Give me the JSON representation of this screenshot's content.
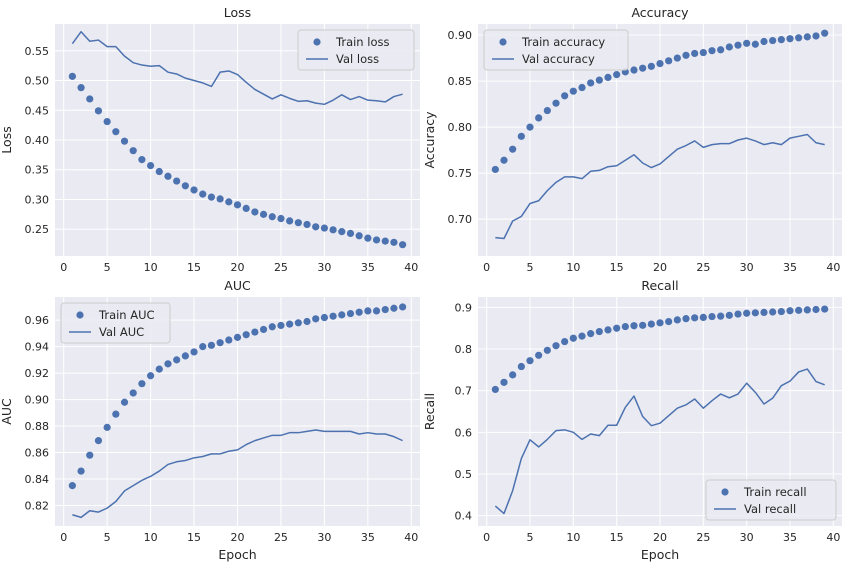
{
  "colors": {
    "accent": "#4c72b0",
    "axes_bg": "#eaeaf2",
    "grid": "#ffffff",
    "text": "#262626"
  },
  "chart_data": [
    {
      "type": "line",
      "title": "Loss",
      "xlabel": "",
      "ylabel": "Loss",
      "xlim": [
        -1,
        41
      ],
      "ylim": [
        0.205,
        0.595
      ],
      "xticks": [
        0,
        5,
        10,
        15,
        20,
        25,
        30,
        35,
        40
      ],
      "yticks": [
        0.25,
        0.3,
        0.35,
        0.4,
        0.45,
        0.5,
        0.55
      ],
      "legend_position": "top-right",
      "grid": true,
      "x": [
        1,
        2,
        3,
        4,
        5,
        6,
        7,
        8,
        9,
        10,
        11,
        12,
        13,
        14,
        15,
        16,
        17,
        18,
        19,
        20,
        21,
        22,
        23,
        24,
        25,
        26,
        27,
        28,
        29,
        30,
        31,
        32,
        33,
        34,
        35,
        36,
        37,
        38,
        39
      ],
      "series": [
        {
          "name": "Train loss",
          "style": "markers",
          "values": [
            0.507,
            0.488,
            0.469,
            0.449,
            0.431,
            0.414,
            0.398,
            0.382,
            0.367,
            0.357,
            0.347,
            0.339,
            0.331,
            0.323,
            0.316,
            0.309,
            0.304,
            0.301,
            0.296,
            0.291,
            0.285,
            0.279,
            0.275,
            0.271,
            0.268,
            0.264,
            0.261,
            0.258,
            0.254,
            0.252,
            0.249,
            0.246,
            0.243,
            0.239,
            0.235,
            0.232,
            0.23,
            0.228,
            0.224
          ]
        },
        {
          "name": "Val loss",
          "style": "line",
          "values": [
            0.562,
            0.582,
            0.566,
            0.568,
            0.557,
            0.557,
            0.541,
            0.53,
            0.526,
            0.524,
            0.525,
            0.514,
            0.511,
            0.504,
            0.5,
            0.496,
            0.49,
            0.514,
            0.516,
            0.51,
            0.497,
            0.485,
            0.477,
            0.469,
            0.476,
            0.47,
            0.465,
            0.466,
            0.462,
            0.46,
            0.467,
            0.476,
            0.468,
            0.473,
            0.467,
            0.466,
            0.464,
            0.473,
            0.477
          ]
        }
      ]
    },
    {
      "type": "line",
      "title": "Accuracy",
      "xlabel": "",
      "ylabel": "Accuracy",
      "xlim": [
        -1,
        41
      ],
      "ylim": [
        0.66,
        0.912
      ],
      "xticks": [
        0,
        5,
        10,
        15,
        20,
        25,
        30,
        35,
        40
      ],
      "yticks": [
        0.7,
        0.75,
        0.8,
        0.85,
        0.9
      ],
      "legend_position": "top-left",
      "grid": true,
      "x": [
        1,
        2,
        3,
        4,
        5,
        6,
        7,
        8,
        9,
        10,
        11,
        12,
        13,
        14,
        15,
        16,
        17,
        18,
        19,
        20,
        21,
        22,
        23,
        24,
        25,
        26,
        27,
        28,
        29,
        30,
        31,
        32,
        33,
        34,
        35,
        36,
        37,
        38,
        39
      ],
      "series": [
        {
          "name": "Train accuracy",
          "style": "markers",
          "values": [
            0.754,
            0.764,
            0.776,
            0.79,
            0.8,
            0.81,
            0.818,
            0.826,
            0.834,
            0.839,
            0.843,
            0.848,
            0.851,
            0.854,
            0.857,
            0.86,
            0.862,
            0.864,
            0.866,
            0.869,
            0.872,
            0.875,
            0.878,
            0.88,
            0.881,
            0.883,
            0.884,
            0.887,
            0.889,
            0.891,
            0.89,
            0.893,
            0.894,
            0.895,
            0.896,
            0.897,
            0.898,
            0.899,
            0.902
          ]
        },
        {
          "name": "Val accuracy",
          "style": "line",
          "values": [
            0.68,
            0.679,
            0.698,
            0.703,
            0.717,
            0.72,
            0.731,
            0.74,
            0.746,
            0.746,
            0.744,
            0.752,
            0.753,
            0.757,
            0.758,
            0.764,
            0.77,
            0.761,
            0.756,
            0.76,
            0.768,
            0.776,
            0.78,
            0.785,
            0.778,
            0.781,
            0.782,
            0.782,
            0.786,
            0.788,
            0.785,
            0.781,
            0.783,
            0.781,
            0.788,
            0.79,
            0.792,
            0.783,
            0.781
          ]
        }
      ]
    },
    {
      "type": "line",
      "title": "AUC",
      "xlabel": "Epoch",
      "ylabel": "AUC",
      "xlim": [
        -1,
        41
      ],
      "ylim": [
        0.8045,
        0.9775
      ],
      "xticks": [
        0,
        5,
        10,
        15,
        20,
        25,
        30,
        35,
        40
      ],
      "yticks": [
        0.82,
        0.84,
        0.86,
        0.88,
        0.9,
        0.92,
        0.94,
        0.96
      ],
      "legend_position": "top-left",
      "grid": true,
      "x": [
        1,
        2,
        3,
        4,
        5,
        6,
        7,
        8,
        9,
        10,
        11,
        12,
        13,
        14,
        15,
        16,
        17,
        18,
        19,
        20,
        21,
        22,
        23,
        24,
        25,
        26,
        27,
        28,
        29,
        30,
        31,
        32,
        33,
        34,
        35,
        36,
        37,
        38,
        39
      ],
      "series": [
        {
          "name": "Train AUC",
          "style": "markers",
          "values": [
            0.835,
            0.846,
            0.858,
            0.869,
            0.879,
            0.889,
            0.898,
            0.905,
            0.912,
            0.918,
            0.923,
            0.927,
            0.93,
            0.933,
            0.936,
            0.94,
            0.941,
            0.943,
            0.945,
            0.947,
            0.949,
            0.951,
            0.953,
            0.955,
            0.956,
            0.957,
            0.958,
            0.959,
            0.961,
            0.962,
            0.963,
            0.964,
            0.965,
            0.966,
            0.967,
            0.967,
            0.968,
            0.969,
            0.97
          ]
        },
        {
          "name": "Val AUC",
          "style": "line",
          "values": [
            0.813,
            0.811,
            0.816,
            0.815,
            0.818,
            0.823,
            0.831,
            0.835,
            0.839,
            0.842,
            0.846,
            0.851,
            0.853,
            0.854,
            0.856,
            0.857,
            0.859,
            0.859,
            0.861,
            0.862,
            0.866,
            0.869,
            0.871,
            0.873,
            0.873,
            0.875,
            0.875,
            0.876,
            0.877,
            0.876,
            0.876,
            0.876,
            0.876,
            0.874,
            0.875,
            0.874,
            0.874,
            0.872,
            0.869
          ]
        }
      ]
    },
    {
      "type": "line",
      "title": "Recall",
      "xlabel": "Epoch",
      "ylabel": "Recall",
      "xlim": [
        -1,
        41
      ],
      "ylim": [
        0.375,
        0.925
      ],
      "xticks": [
        0,
        5,
        10,
        15,
        20,
        25,
        30,
        35,
        40
      ],
      "yticks": [
        0.4,
        0.5,
        0.6,
        0.7,
        0.8,
        0.9
      ],
      "legend_position": "bottom-right",
      "grid": true,
      "x": [
        1,
        2,
        3,
        4,
        5,
        6,
        7,
        8,
        9,
        10,
        11,
        12,
        13,
        14,
        15,
        16,
        17,
        18,
        19,
        20,
        21,
        22,
        23,
        24,
        25,
        26,
        27,
        28,
        29,
        30,
        31,
        32,
        33,
        34,
        35,
        36,
        37,
        38,
        39
      ],
      "series": [
        {
          "name": "Train recall",
          "style": "markers",
          "values": [
            0.703,
            0.72,
            0.738,
            0.758,
            0.772,
            0.785,
            0.797,
            0.808,
            0.818,
            0.826,
            0.831,
            0.837,
            0.842,
            0.846,
            0.85,
            0.854,
            0.856,
            0.857,
            0.86,
            0.863,
            0.866,
            0.87,
            0.873,
            0.875,
            0.876,
            0.878,
            0.879,
            0.881,
            0.884,
            0.886,
            0.887,
            0.888,
            0.889,
            0.89,
            0.892,
            0.893,
            0.894,
            0.895,
            0.896
          ]
        },
        {
          "name": "Val recall",
          "style": "line",
          "values": [
            0.423,
            0.405,
            0.46,
            0.537,
            0.582,
            0.565,
            0.583,
            0.604,
            0.606,
            0.6,
            0.583,
            0.596,
            0.592,
            0.617,
            0.617,
            0.66,
            0.687,
            0.638,
            0.616,
            0.622,
            0.64,
            0.658,
            0.666,
            0.68,
            0.658,
            0.676,
            0.692,
            0.683,
            0.692,
            0.718,
            0.696,
            0.668,
            0.682,
            0.712,
            0.723,
            0.745,
            0.752,
            0.722,
            0.714
          ]
        }
      ]
    }
  ]
}
